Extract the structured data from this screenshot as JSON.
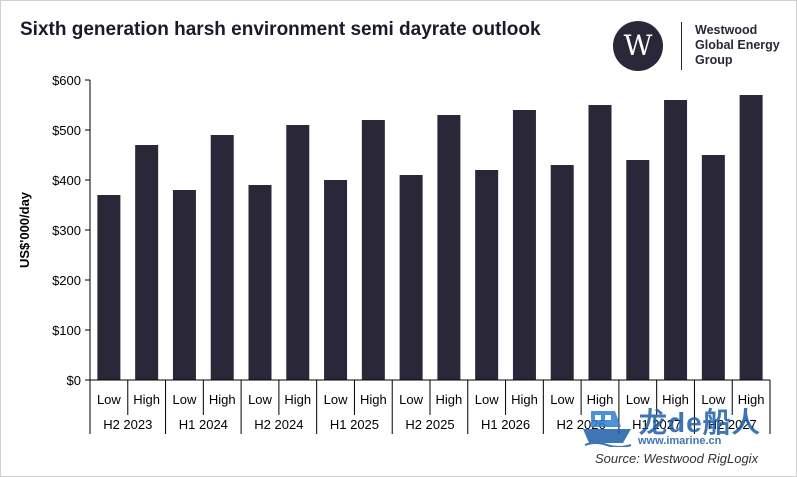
{
  "chart_data": {
    "type": "bar",
    "title": "Sixth generation harsh environment semi dayrate outlook",
    "ylabel": "US$'000/day",
    "xlabel": "",
    "ylim": [
      0,
      600
    ],
    "yticks": [
      0,
      100,
      200,
      300,
      400,
      500,
      600
    ],
    "ytick_labels": [
      "$0",
      "$100",
      "$200",
      "$300",
      "$400",
      "$500",
      "$600"
    ],
    "grid": false,
    "legend": "none",
    "bar_color": "#2a2738",
    "groups": [
      "H2 2023",
      "H1 2024",
      "H2 2024",
      "H1 2025",
      "H2 2025",
      "H1 2026",
      "H2 2026",
      "H1 2027",
      "H2 2027"
    ],
    "categories": [
      "Low",
      "High",
      "Low",
      "High",
      "Low",
      "High",
      "Low",
      "High",
      "Low",
      "High",
      "Low",
      "High",
      "Low",
      "High",
      "Low",
      "High",
      "Low",
      "High"
    ],
    "values": [
      370,
      470,
      380,
      490,
      390,
      510,
      400,
      520,
      410,
      530,
      420,
      540,
      430,
      550,
      440,
      560,
      450,
      570
    ]
  },
  "logo": {
    "mark": "W",
    "lines": [
      "Westwood",
      "Global Energy",
      "Group"
    ]
  },
  "source": "Source: Westwood RigLogix",
  "watermark": {
    "text": "龙de船人",
    "url": "www.imarine.cn",
    "icon": "ship-icon"
  }
}
